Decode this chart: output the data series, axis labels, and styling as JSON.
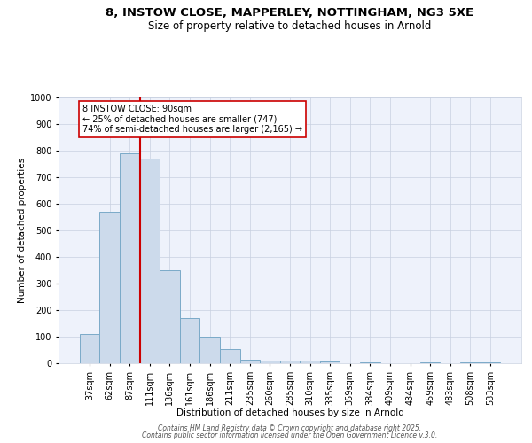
{
  "title": "8, INSTOW CLOSE, MAPPERLEY, NOTTINGHAM, NG3 5XE",
  "subtitle": "Size of property relative to detached houses in Arnold",
  "xlabel": "Distribution of detached houses by size in Arnold",
  "ylabel": "Number of detached properties",
  "categories": [
    "37sqm",
    "62sqm",
    "87sqm",
    "111sqm",
    "136sqm",
    "161sqm",
    "186sqm",
    "211sqm",
    "235sqm",
    "260sqm",
    "285sqm",
    "310sqm",
    "335sqm",
    "359sqm",
    "384sqm",
    "409sqm",
    "434sqm",
    "459sqm",
    "483sqm",
    "508sqm",
    "533sqm"
  ],
  "values": [
    110,
    570,
    790,
    770,
    350,
    170,
    100,
    55,
    15,
    10,
    10,
    10,
    8,
    0,
    5,
    0,
    0,
    5,
    0,
    5,
    5
  ],
  "bar_color": "#ccdaeb",
  "bar_edge_color": "#7aaac8",
  "property_line_x": 2.5,
  "property_line_color": "#cc0000",
  "annotation_line1": "8 INSTOW CLOSE: 90sqm",
  "annotation_line2": "← 25% of detached houses are smaller (747)",
  "annotation_line3": "74% of semi-detached houses are larger (2,165) →",
  "annotation_box_color": "#cc0000",
  "ylim": [
    0,
    1000
  ],
  "yticks": [
    0,
    100,
    200,
    300,
    400,
    500,
    600,
    700,
    800,
    900,
    1000
  ],
  "grid_color": "#c8d0e0",
  "background_color": "#eef2fb",
  "footer_line1": "Contains HM Land Registry data © Crown copyright and database right 2025.",
  "footer_line2": "Contains public sector information licensed under the Open Government Licence v.3.0.",
  "title_fontsize": 9.5,
  "subtitle_fontsize": 8.5,
  "tick_fontsize": 7,
  "ylabel_fontsize": 7.5,
  "xlabel_fontsize": 7.5,
  "annotation_fontsize": 7,
  "footer_fontsize": 5.5
}
